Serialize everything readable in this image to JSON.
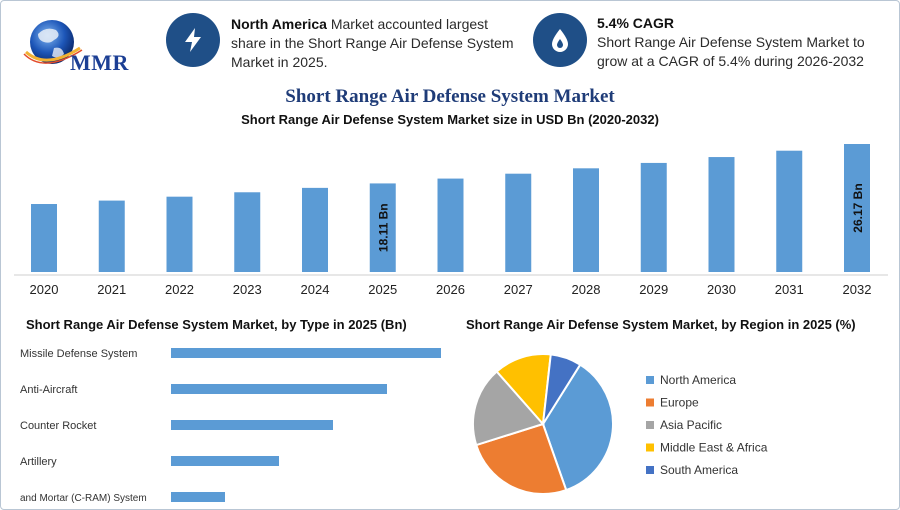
{
  "header": {
    "logo_text": "MMR",
    "info1": {
      "bold": "North America",
      "text": " Market accounted largest share in the Short Range Air Defense System Market in 2025.",
      "icon": "lightning-icon"
    },
    "info2": {
      "title": "5.4% CAGR",
      "text": "Short Range Air Defense System Market to grow at a CAGR of 5.4% during 2026-2032",
      "icon": "flame-drop-icon"
    }
  },
  "titles": {
    "main": "Short Range Air Defense System Market",
    "sub": "Short Range Air Defense System Market size in USD Bn (2020-2032)",
    "type": "Short Range Air Defense System Market, by Type in 2025 (Bn)",
    "region": "Short Range Air Defense System Market, by Region in 2025 (%)"
  },
  "colors": {
    "bar": "#5b9bd5",
    "title": "#1f3c78",
    "icon_bg": "#1f4f87"
  },
  "chart_data": [
    {
      "type": "bar",
      "title": "Short Range Air Defense System Market size in USD Bn (2020-2032)",
      "categories": [
        "2020",
        "2021",
        "2022",
        "2023",
        "2024",
        "2025",
        "2026",
        "2027",
        "2028",
        "2029",
        "2030",
        "2031",
        "2032"
      ],
      "values": [
        13.9,
        14.6,
        15.4,
        16.3,
        17.2,
        18.11,
        19.1,
        20.1,
        21.2,
        22.3,
        23.5,
        24.8,
        26.17
      ],
      "data_labels": {
        "5": "18.11 Bn",
        "12": "26.17 Bn"
      },
      "ylim": [
        0,
        26.17
      ]
    },
    {
      "type": "bar",
      "orientation": "horizontal",
      "title": "Short Range Air Defense System Market, by Type in 2025 (Bn)",
      "categories": [
        "Missile Defense System",
        "Anti-Aircraft",
        "Counter Rocket",
        "Artillery",
        "and Mortar (C-RAM) System"
      ],
      "values": [
        5.0,
        4.0,
        3.0,
        2.0,
        1.0
      ],
      "xlim": [
        0,
        5.0
      ]
    },
    {
      "type": "pie",
      "title": "Short Range Air Defense System Market, by Region in 2025 (%)",
      "categories": [
        "North America",
        "Europe",
        "Asia Pacific",
        "Middle East & Africa",
        "South America"
      ],
      "values": [
        35,
        25,
        18,
        13,
        7
      ],
      "colors": [
        "#5b9bd5",
        "#ed7d31",
        "#a5a5a5",
        "#ffc000",
        "#4472c4"
      ]
    }
  ]
}
